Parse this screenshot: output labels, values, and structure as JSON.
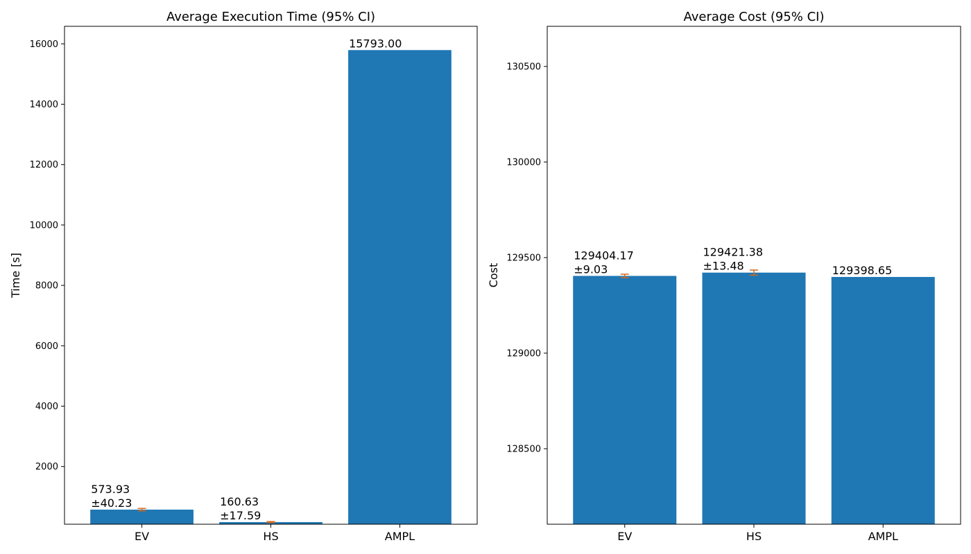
{
  "style": {
    "bar_color": "#1f77b4",
    "errorbar_color": "#d2691e",
    "axis_color": "#000000",
    "background": "#ffffff"
  },
  "chart_data": [
    {
      "type": "bar",
      "title": "Average Execution Time (95% CI)",
      "xlabel": "",
      "ylabel": "Time [s]",
      "ylim": [
        90,
        16580
      ],
      "yticks": [
        2000,
        4000,
        6000,
        8000,
        10000,
        12000,
        14000,
        16000
      ],
      "ytick_labels": [
        "2000",
        "4000",
        "6000",
        "8000",
        "10000",
        "12000",
        "14000",
        "16000"
      ],
      "categories": [
        "EV",
        "HS",
        "AMPL"
      ],
      "values": [
        573.93,
        160.63,
        15793.0
      ],
      "errors": [
        40.23,
        17.59,
        null
      ],
      "value_labels": [
        "573.93",
        "160.63",
        "15793.00"
      ],
      "error_labels": [
        "±40.23",
        "±17.59",
        ""
      ],
      "grid": false
    },
    {
      "type": "bar",
      "title": "Average Cost (95% CI)",
      "xlabel": "",
      "ylabel": "Cost",
      "ylim": [
        128105,
        130710
      ],
      "yticks": [
        128500,
        129000,
        129500,
        130000,
        130500
      ],
      "ytick_labels": [
        "128500",
        "129000",
        "129500",
        "130000",
        "130500"
      ],
      "categories": [
        "EV",
        "HS",
        "AMPL"
      ],
      "values": [
        129404.17,
        129421.38,
        129398.65
      ],
      "errors": [
        9.03,
        13.48,
        null
      ],
      "value_labels": [
        "129404.17",
        "129421.38",
        "129398.65"
      ],
      "error_labels": [
        "±9.03",
        "±13.48",
        ""
      ],
      "grid": false
    }
  ]
}
